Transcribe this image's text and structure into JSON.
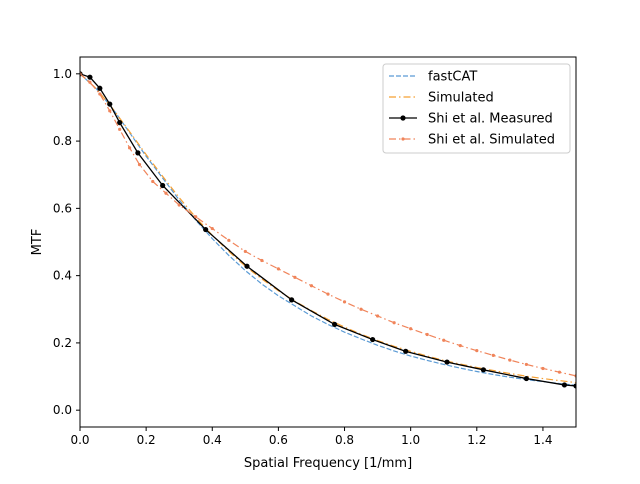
{
  "chart_data": {
    "type": "line",
    "title": "",
    "xlabel": "Spatial Frequency [1/mm]",
    "ylabel": "MTF",
    "xlim": [
      0,
      1.5
    ],
    "ylim": [
      -0.05,
      1.05
    ],
    "xticks": [
      0.0,
      0.2,
      0.4,
      0.6,
      0.8,
      1.0,
      1.2,
      1.4
    ],
    "xtick_labels": [
      "0.0",
      "0.2",
      "0.4",
      "0.6",
      "0.8",
      "1.0",
      "1.2",
      "1.4"
    ],
    "yticks": [
      0.0,
      0.2,
      0.4,
      0.6,
      0.8,
      1.0
    ],
    "ytick_labels": [
      "0.0",
      "0.2",
      "0.4",
      "0.6",
      "0.8",
      "1.0"
    ],
    "grid": false,
    "legend": "top-right",
    "series": [
      {
        "name": "fastCAT",
        "color": "#5b9bd5",
        "style": "dashed",
        "marker": "none",
        "x": [
          0.0,
          0.05,
          0.1,
          0.15,
          0.2,
          0.25,
          0.3,
          0.35,
          0.4,
          0.45,
          0.5,
          0.55,
          0.6,
          0.65,
          0.7,
          0.75,
          0.8,
          0.85,
          0.9,
          0.95,
          1.0,
          1.05,
          1.1,
          1.15,
          1.2,
          1.25,
          1.3,
          1.35,
          1.4,
          1.45,
          1.5
        ],
        "y": [
          1.0,
          0.955,
          0.895,
          0.825,
          0.755,
          0.69,
          0.625,
          0.565,
          0.51,
          0.46,
          0.415,
          0.375,
          0.34,
          0.31,
          0.28,
          0.255,
          0.232,
          0.212,
          0.193,
          0.176,
          0.161,
          0.148,
          0.136,
          0.125,
          0.115,
          0.106,
          0.098,
          0.091,
          0.085,
          0.079,
          0.074
        ]
      },
      {
        "name": "Simulated",
        "color": "#f5a033",
        "style": "dashdot",
        "marker": "none",
        "x": [
          0.0,
          0.05,
          0.1,
          0.15,
          0.2,
          0.25,
          0.3,
          0.35,
          0.4,
          0.45,
          0.5,
          0.55,
          0.6,
          0.65,
          0.7,
          0.75,
          0.8,
          0.85,
          0.9,
          0.95,
          1.0,
          1.05,
          1.1,
          1.15,
          1.2,
          1.25,
          1.3,
          1.35,
          1.4,
          1.45,
          1.5
        ],
        "y": [
          1.0,
          0.955,
          0.895,
          0.828,
          0.76,
          0.695,
          0.632,
          0.573,
          0.52,
          0.472,
          0.428,
          0.39,
          0.355,
          0.324,
          0.296,
          0.27,
          0.247,
          0.226,
          0.207,
          0.19,
          0.175,
          0.161,
          0.148,
          0.137,
          0.127,
          0.118,
          0.109,
          0.101,
          0.094,
          0.088,
          0.082
        ]
      },
      {
        "name": "Shi et al. Measured",
        "color": "#000000",
        "style": "solid",
        "marker": "circle",
        "x": [
          0.0,
          0.03,
          0.06,
          0.09,
          0.12,
          0.175,
          0.25,
          0.38,
          0.505,
          0.64,
          0.77,
          0.885,
          0.985,
          1.11,
          1.22,
          1.35,
          1.465,
          1.5
        ],
        "y": [
          1.0,
          0.99,
          0.957,
          0.91,
          0.855,
          0.765,
          0.668,
          0.537,
          0.428,
          0.328,
          0.255,
          0.21,
          0.175,
          0.143,
          0.12,
          0.094,
          0.075,
          0.072
        ]
      },
      {
        "name": "Shi et al. Simulated",
        "color": "#f0845a",
        "style": "dashdot",
        "marker": "dot",
        "x": [
          0.0,
          0.03,
          0.06,
          0.09,
          0.12,
          0.15,
          0.18,
          0.22,
          0.26,
          0.3,
          0.35,
          0.4,
          0.45,
          0.5,
          0.55,
          0.6,
          0.65,
          0.7,
          0.75,
          0.8,
          0.85,
          0.9,
          0.95,
          1.0,
          1.05,
          1.1,
          1.15,
          1.2,
          1.25,
          1.3,
          1.35,
          1.4,
          1.45,
          1.5
        ],
        "y": [
          1.0,
          0.975,
          0.94,
          0.89,
          0.835,
          0.78,
          0.73,
          0.68,
          0.645,
          0.61,
          0.575,
          0.54,
          0.505,
          0.472,
          0.445,
          0.42,
          0.395,
          0.37,
          0.345,
          0.322,
          0.3,
          0.28,
          0.26,
          0.242,
          0.225,
          0.208,
          0.192,
          0.177,
          0.163,
          0.149,
          0.136,
          0.124,
          0.113,
          0.102
        ]
      }
    ]
  }
}
